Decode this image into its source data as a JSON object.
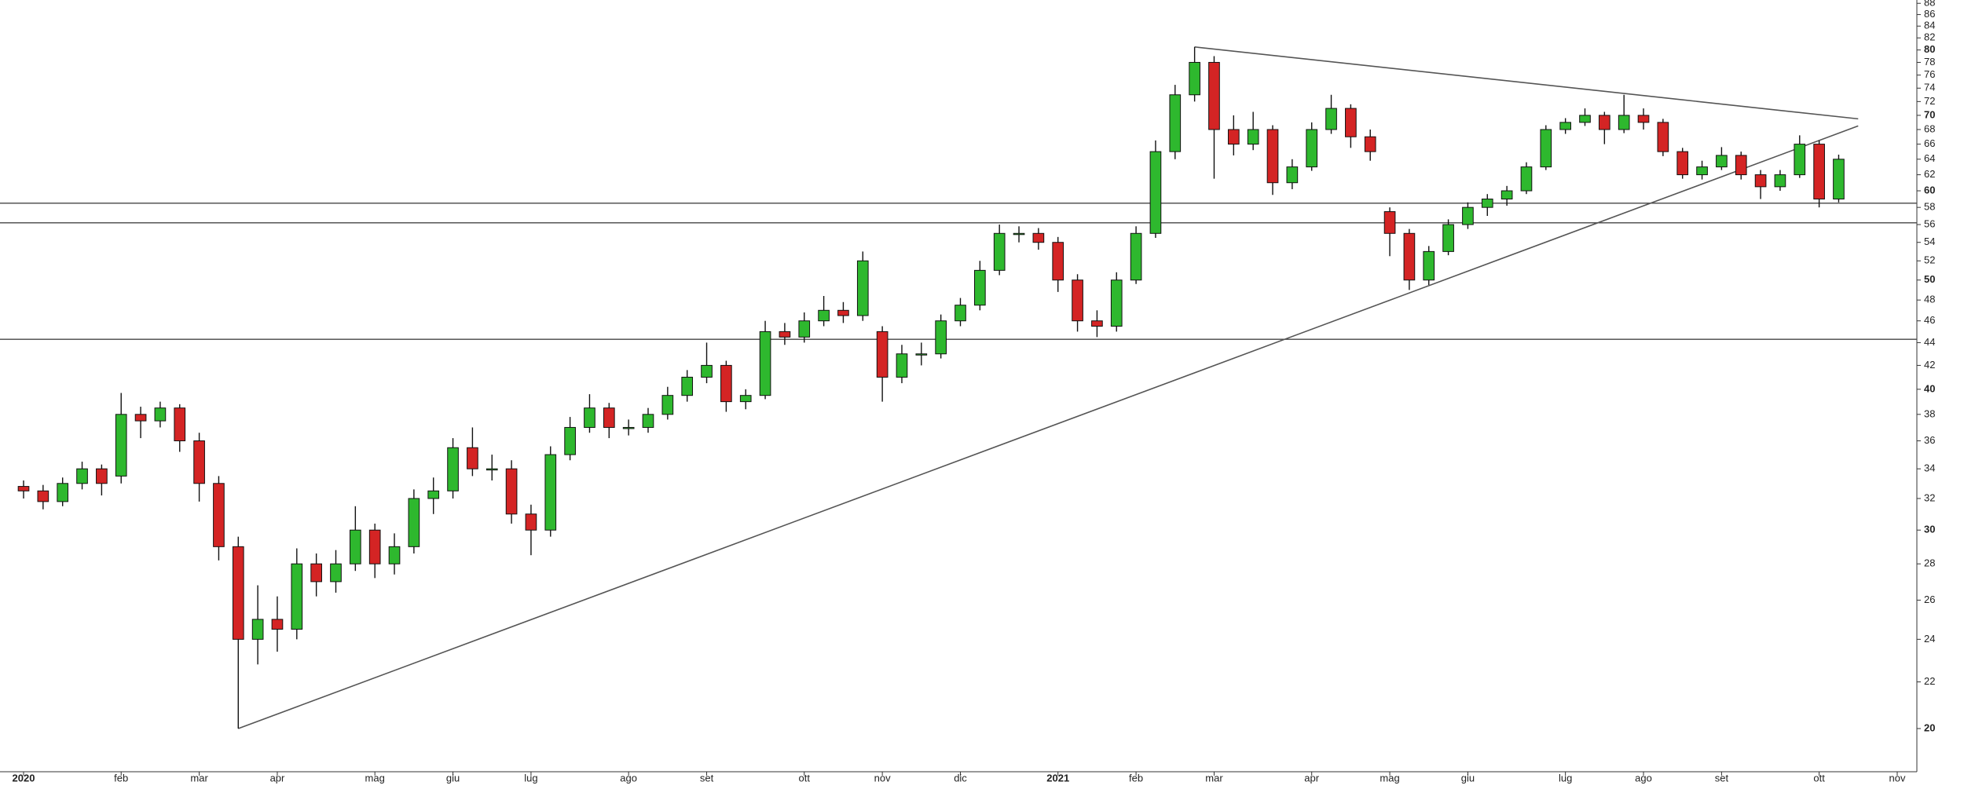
{
  "chart_data": {
    "type": "candlestick",
    "categories": [
      "2020",
      null,
      null,
      null,
      null,
      "feb",
      null,
      null,
      null,
      "mar",
      null,
      null,
      null,
      "apr",
      null,
      null,
      null,
      null,
      "mag",
      null,
      null,
      null,
      "giu",
      null,
      null,
      null,
      "lug",
      null,
      null,
      null,
      null,
      "ago",
      null,
      null,
      null,
      "set",
      null,
      null,
      null,
      null,
      "ott",
      null,
      null,
      null,
      "nov",
      null,
      null,
      null,
      "dic",
      null,
      null,
      null,
      null,
      "2021",
      null,
      null,
      null,
      "feb",
      null,
      null,
      null,
      "mar",
      null,
      null,
      null,
      null,
      "apr",
      null,
      null,
      null,
      "mag",
      null,
      null,
      null,
      "giu",
      null,
      null,
      null,
      null,
      "lug",
      null,
      null,
      null,
      "ago",
      null,
      null,
      null,
      "set",
      null,
      null,
      null,
      null,
      "ott",
      null,
      null,
      null,
      "nov"
    ],
    "open": [
      32.8,
      32.5,
      31.8,
      33.0,
      34.0,
      33.5,
      38.0,
      37.5,
      38.5,
      36.0,
      33.0,
      29.0,
      24.0,
      25.0,
      24.5,
      28.0,
      27.0,
      28.0,
      30.0,
      28.0,
      29.0,
      32.0,
      32.5,
      35.5,
      34.0,
      34.0,
      31.0,
      30.0,
      35.0,
      37.0,
      38.5,
      37.0,
      37.0,
      38.0,
      39.5,
      41.0,
      42.0,
      39.0,
      39.5,
      45.0,
      44.5,
      46.0,
      47.0,
      46.5,
      45.0,
      41.0,
      43.0,
      43.0,
      46.0,
      47.5,
      51.0,
      55.0,
      55.0,
      54.0,
      50.0,
      46.0,
      45.5,
      50.0,
      55.0,
      65.0,
      73.0,
      78.0,
      68.0,
      66.0,
      68.0,
      61.0,
      63.0,
      68.0,
      71.0,
      67.0,
      57.5,
      55.0,
      50.0,
      53.0,
      56.0,
      58.0,
      59.0,
      60.0,
      63.0,
      68.0,
      69.0,
      70.0,
      68.0,
      70.0,
      69.0,
      65.0,
      62.0,
      63.0,
      64.5,
      62.0,
      60.5,
      62.0,
      66.0,
      59.0,
      null,
      null,
      null
    ],
    "high": [
      33.2,
      32.9,
      33.4,
      34.5,
      34.3,
      39.7,
      38.6,
      39.0,
      38.8,
      36.6,
      33.5,
      29.6,
      26.8,
      26.2,
      28.9,
      28.6,
      28.8,
      31.5,
      30.4,
      29.8,
      32.6,
      33.4,
      36.2,
      37.0,
      35.0,
      34.6,
      31.6,
      35.6,
      37.8,
      39.6,
      38.9,
      37.6,
      38.5,
      40.2,
      41.6,
      44.0,
      42.4,
      40.0,
      46.0,
      45.8,
      46.8,
      48.4,
      47.8,
      53.0,
      45.5,
      43.8,
      44.0,
      46.6,
      48.2,
      52.0,
      56.0,
      55.8,
      55.6,
      54.6,
      50.6,
      47.0,
      50.8,
      55.8,
      66.5,
      74.5,
      80.5,
      79.0,
      70.0,
      70.5,
      68.6,
      64.0,
      69.0,
      73.0,
      71.6,
      68.0,
      58.0,
      55.5,
      53.6,
      56.6,
      58.6,
      59.6,
      60.6,
      63.6,
      68.6,
      69.6,
      71.0,
      70.5,
      73.0,
      71.0,
      69.5,
      65.5,
      63.8,
      65.6,
      65.0,
      62.6,
      62.6,
      67.2,
      66.5,
      64.6,
      null,
      null,
      null
    ],
    "low": [
      32.0,
      31.3,
      31.5,
      32.6,
      32.2,
      33.0,
      36.2,
      37.0,
      35.2,
      31.8,
      28.2,
      20.0,
      22.8,
      23.4,
      24.0,
      26.2,
      26.4,
      27.6,
      27.2,
      27.4,
      28.6,
      31.0,
      32.0,
      33.5,
      33.2,
      30.4,
      28.5,
      29.6,
      34.6,
      36.6,
      36.2,
      36.4,
      36.6,
      37.6,
      39.0,
      40.5,
      38.2,
      38.4,
      39.2,
      43.8,
      44.0,
      45.5,
      45.8,
      46.0,
      39.0,
      40.5,
      42.0,
      42.6,
      45.5,
      47.0,
      50.5,
      54.0,
      53.2,
      48.8,
      45.0,
      44.5,
      45.0,
      49.6,
      54.5,
      64.0,
      72.0,
      61.5,
      64.5,
      65.2,
      59.5,
      60.2,
      62.5,
      67.4,
      65.5,
      63.8,
      52.5,
      49.0,
      49.5,
      52.6,
      55.5,
      57.0,
      58.2,
      59.6,
      62.6,
      67.4,
      68.5,
      66.0,
      67.5,
      68.0,
      64.4,
      61.5,
      61.4,
      62.6,
      61.4,
      59.0,
      60.0,
      61.6,
      58.0,
      58.6,
      null,
      null,
      null
    ],
    "close": [
      32.5,
      31.8,
      33.0,
      34.0,
      33.0,
      38.0,
      37.5,
      38.5,
      36.0,
      33.0,
      29.0,
      24.0,
      25.0,
      24.5,
      28.0,
      27.0,
      28.0,
      30.0,
      28.0,
      29.0,
      32.0,
      32.5,
      35.5,
      34.0,
      34.0,
      31.0,
      30.0,
      35.0,
      37.0,
      38.5,
      37.0,
      37.0,
      38.0,
      39.5,
      41.0,
      42.0,
      39.0,
      39.5,
      45.0,
      44.5,
      46.0,
      47.0,
      46.5,
      52.0,
      41.0,
      43.0,
      43.0,
      46.0,
      47.5,
      51.0,
      55.0,
      55.0,
      54.0,
      50.0,
      46.0,
      45.5,
      50.0,
      55.0,
      65.0,
      73.0,
      78.0,
      68.0,
      66.0,
      68.0,
      61.0,
      63.0,
      68.0,
      71.0,
      67.0,
      65.0,
      55.0,
      50.0,
      53.0,
      56.0,
      58.0,
      59.0,
      60.0,
      63.0,
      68.0,
      69.0,
      70.0,
      68.0,
      70.0,
      69.0,
      65.0,
      62.0,
      63.0,
      64.5,
      62.0,
      60.5,
      62.0,
      66.0,
      59.0,
      64.0,
      null,
      null,
      null
    ],
    "up_color": "#2eb82e",
    "down_color": "#d42424",
    "log_scale": true,
    "ylim": [
      18.4,
      88.6
    ],
    "yticks": [
      20,
      22,
      24,
      26,
      28,
      30,
      32,
      34,
      36,
      38,
      40,
      42,
      44,
      46,
      48,
      50,
      52,
      54,
      56,
      58,
      60,
      62,
      64,
      66,
      68,
      70,
      72,
      74,
      76,
      78,
      80,
      82,
      84,
      86,
      88
    ],
    "levels": [
      58.5,
      56.2,
      44.3
    ],
    "trendlines": [
      {
        "from": 11,
        "from_value": 20,
        "to": 94,
        "to_value": 68.5
      },
      {
        "from": 60,
        "from_value": 80.5,
        "to": 94,
        "to_value": 69.5
      }
    ]
  }
}
